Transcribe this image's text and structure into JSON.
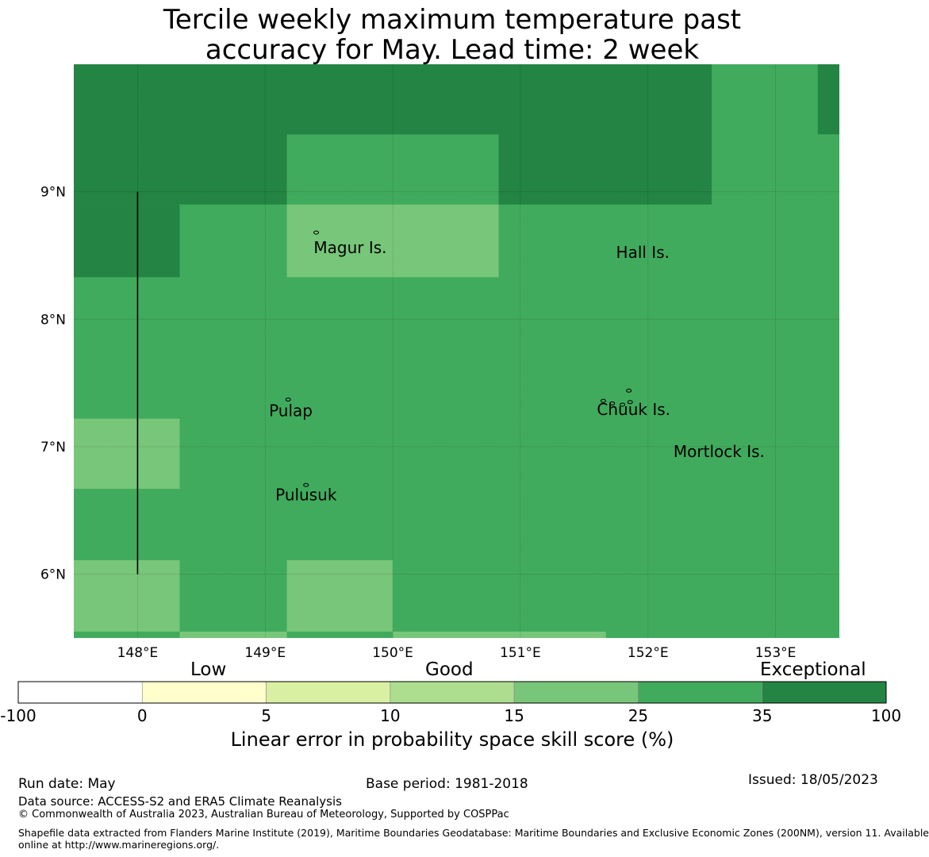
{
  "title": {
    "line1": "Tercile weekly maximum temperature past",
    "line2": "accuracy for May. Lead time: 2 week"
  },
  "map": {
    "lon_range": [
      147.5,
      153.5
    ],
    "lat_range": [
      5.5,
      10.0
    ],
    "lon_ticks": [
      {
        "value": 148,
        "label": "148°E"
      },
      {
        "value": 149,
        "label": "149°E"
      },
      {
        "value": 150,
        "label": "150°E"
      },
      {
        "value": 151,
        "label": "151°E"
      },
      {
        "value": 152,
        "label": "152°E"
      },
      {
        "value": 153,
        "label": "153°E"
      }
    ],
    "lat_ticks": [
      {
        "value": 9,
        "label": "9°N"
      },
      {
        "value": 8,
        "label": "8°N"
      },
      {
        "value": 7,
        "label": "7°N"
      },
      {
        "value": 6,
        "label": "6°N"
      }
    ],
    "grid_lines": true,
    "colors": {
      "exceptional": "#238443",
      "very_good": "#41ab5d",
      "good": "#78c679"
    },
    "cells": [
      {
        "lon": [
          147.5,
          152.5
        ],
        "lat": [
          8.9,
          10.0
        ],
        "color": "exceptional"
      },
      {
        "lon": [
          147.5,
          148.33
        ],
        "lat": [
          8.33,
          8.9
        ],
        "color": "exceptional"
      },
      {
        "lon": [
          153.33,
          153.5
        ],
        "lat": [
          9.45,
          10.0
        ],
        "color": "exceptional"
      },
      {
        "lon": [
          149.17,
          150.83
        ],
        "lat": [
          9.45,
          10.0
        ],
        "color": "exceptional"
      },
      {
        "lon": [
          152.5,
          153.33
        ],
        "lat": [
          8.9,
          10.0
        ],
        "color": "very_good"
      },
      {
        "lon": [
          153.33,
          153.5
        ],
        "lat": [
          8.9,
          9.45
        ],
        "color": "very_good"
      },
      {
        "lon": [
          149.17,
          150.83
        ],
        "lat": [
          8.9,
          9.45
        ],
        "color": "very_good"
      },
      {
        "lon": [
          149.17,
          150.83
        ],
        "lat": [
          8.33,
          8.9
        ],
        "color": "good"
      },
      {
        "lon": [
          147.5,
          148.33
        ],
        "lat": [
          6.67,
          7.22
        ],
        "color": "good"
      },
      {
        "lon": [
          147.5,
          148.33
        ],
        "lat": [
          5.55,
          6.11
        ],
        "color": "good"
      },
      {
        "lon": [
          149.17,
          150.0
        ],
        "lat": [
          5.55,
          6.11
        ],
        "color": "good"
      },
      {
        "lon": [
          148.33,
          149.17
        ],
        "lat": [
          5.5,
          5.55
        ],
        "color": "good"
      },
      {
        "lon": [
          150.0,
          151.67
        ],
        "lat": [
          5.5,
          5.55
        ],
        "color": "good"
      }
    ],
    "base_color": "very_good",
    "vertical_line": {
      "lon": 148.0,
      "lat": [
        6.0,
        9.0
      ]
    },
    "places": [
      {
        "name": "Magur Is.",
        "lon": 149.38,
        "lat": 8.52
      },
      {
        "name": "Hall Is.",
        "lon": 151.75,
        "lat": 8.48
      },
      {
        "name": "Pulap",
        "lon": 149.03,
        "lat": 7.24
      },
      {
        "name": "Chuuk Is.",
        "lon": 151.6,
        "lat": 7.25
      },
      {
        "name": "Mortlock Is.",
        "lon": 152.2,
        "lat": 6.92
      },
      {
        "name": "Pulusuk",
        "lon": 149.08,
        "lat": 6.58
      }
    ],
    "islands": [
      {
        "lon": 149.4,
        "lat": 8.68
      },
      {
        "lon": 149.18,
        "lat": 7.37
      },
      {
        "lon": 149.32,
        "lat": 6.7
      },
      {
        "lon": 151.65,
        "lat": 7.36
      },
      {
        "lon": 151.72,
        "lat": 7.34
      },
      {
        "lon": 151.85,
        "lat": 7.44
      },
      {
        "lon": 151.86,
        "lat": 7.35
      },
      {
        "lon": 151.8,
        "lat": 7.33
      }
    ]
  },
  "colorbar": {
    "category_labels": [
      "Low",
      "Good",
      "Exceptional"
    ],
    "boundaries": [
      "-100",
      "0",
      "5",
      "10",
      "15",
      "25",
      "35",
      "100"
    ],
    "colors": [
      "#ffffff",
      "#ffffcc",
      "#d9f0a3",
      "#addd8e",
      "#78c679",
      "#41ab5d",
      "#238443"
    ],
    "title": "Linear error in probability space skill score (%)"
  },
  "footer": {
    "run_date": "Run date: May",
    "base_period": "Base period: 1981-2018",
    "issued": "Issued: 18/05/2023",
    "data_source": "Data source: ACCESS-S2 and ERA5 Climate Reanalysis",
    "copyright": "© Commonwealth of Australia 2023, Australian Bureau of Meteorology, Supported by COSPPac",
    "shapefile_line1": "Shapefile data extracted from Flanders Marine Institute (2019), Maritime Boundaries Geodatabase: Maritime Boundaries and Exclusive Economic Zones (200NM), version 11. Available",
    "shapefile_line2": "online at http://www.marineregions.org/."
  }
}
